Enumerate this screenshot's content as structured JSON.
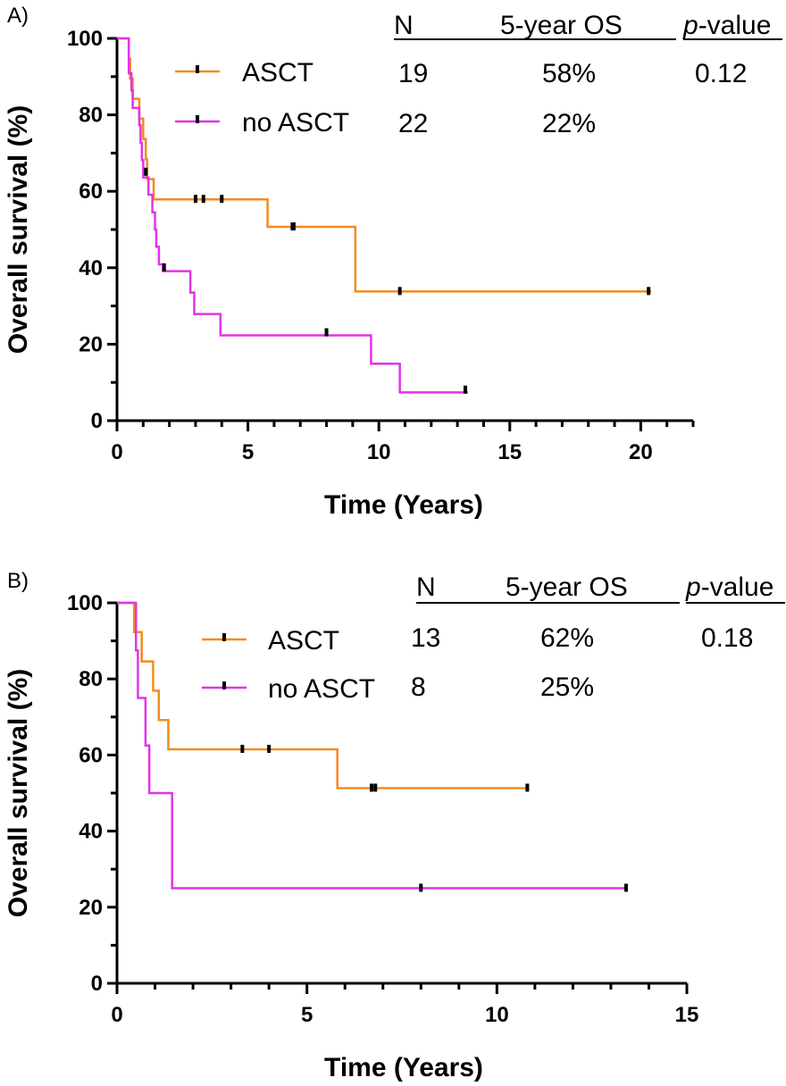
{
  "chart_data": [
    {
      "type": "line",
      "subtype": "kaplan-meier",
      "panel_label": "A)",
      "xlabel": "Time (Years)",
      "ylabel": "Overall survival (%)",
      "xlim": [
        0,
        22
      ],
      "ylim": [
        0,
        100
      ],
      "xticks": [
        0,
        5,
        10,
        15,
        20
      ],
      "yticks": [
        0,
        20,
        40,
        60,
        80,
        100
      ],
      "table": {
        "headers": {
          "n": "N",
          "os": "5-year OS",
          "p_italic": "p",
          "p_rest": "-value"
        },
        "rows": [
          {
            "n": "19",
            "os": "58%",
            "p": "0.12"
          },
          {
            "n": "22",
            "os": "22%",
            "p": ""
          }
        ]
      },
      "series": [
        {
          "name": "ASCT",
          "color": "#F28C1E",
          "steps": [
            [
              0,
              100
            ],
            [
              0.45,
              94.7
            ],
            [
              0.5,
              89.5
            ],
            [
              0.6,
              84.2
            ],
            [
              0.85,
              79
            ],
            [
              1.0,
              73.7
            ],
            [
              1.1,
              68.4
            ],
            [
              1.15,
              63.2
            ],
            [
              1.4,
              57.9
            ],
            [
              5.75,
              50.7
            ],
            [
              9.1,
              33.8
            ]
          ],
          "end": 20.4,
          "censors": [
            [
              3.0,
              57.9
            ],
            [
              3.3,
              57.9
            ],
            [
              4.0,
              57.9
            ],
            [
              6.7,
              50.7
            ],
            [
              6.75,
              50.7
            ],
            [
              10.8,
              33.8
            ],
            [
              20.3,
              33.8
            ]
          ]
        },
        {
          "name": "no ASCT",
          "color": "#E233E8",
          "steps": [
            [
              0,
              100
            ],
            [
              0.45,
              90.9
            ],
            [
              0.55,
              86.4
            ],
            [
              0.6,
              81.8
            ],
            [
              0.85,
              77.3
            ],
            [
              0.9,
              72.7
            ],
            [
              0.95,
              68.2
            ],
            [
              1.0,
              63.6
            ],
            [
              1.2,
              59.1
            ],
            [
              1.35,
              54.5
            ],
            [
              1.45,
              50.0
            ],
            [
              1.5,
              45.5
            ],
            [
              1.6,
              40.9
            ],
            [
              1.75,
              39.1
            ],
            [
              2.8,
              33.5
            ],
            [
              2.95,
              27.9
            ],
            [
              3.95,
              22.3
            ],
            [
              9.7,
              14.9
            ],
            [
              10.8,
              7.4
            ]
          ],
          "end": 13.4,
          "censors": [
            [
              1.1,
              65.0
            ],
            [
              1.8,
              40.0
            ],
            [
              8.0,
              23.0
            ],
            [
              13.3,
              8.0
            ]
          ]
        }
      ]
    },
    {
      "type": "line",
      "subtype": "kaplan-meier",
      "panel_label": "B)",
      "xlabel": "Time (Years)",
      "ylabel": "Overall survival (%)",
      "xlim": [
        0,
        15
      ],
      "ylim": [
        0,
        100
      ],
      "xticks": [
        0,
        5,
        10,
        15
      ],
      "yticks": [
        0,
        20,
        40,
        60,
        80,
        100
      ],
      "table": {
        "headers": {
          "n": "N",
          "os": "5-year OS",
          "p_italic": "p",
          "p_rest": "-value"
        },
        "rows": [
          {
            "n": "13",
            "os": "62%",
            "p": "0.18"
          },
          {
            "n": "8",
            "os": "25%",
            "p": ""
          }
        ]
      },
      "series": [
        {
          "name": "ASCT",
          "color": "#F28C1E",
          "steps": [
            [
              0,
              100
            ],
            [
              0.45,
              92.3
            ],
            [
              0.65,
              84.6
            ],
            [
              0.95,
              76.9
            ],
            [
              1.1,
              69.2
            ],
            [
              1.35,
              61.5
            ],
            [
              5.8,
              51.3
            ]
          ],
          "end": 10.8,
          "censors": [
            [
              3.3,
              61.5
            ],
            [
              4.0,
              61.5
            ],
            [
              6.7,
              51.3
            ],
            [
              6.8,
              51.3
            ],
            [
              10.8,
              51.3
            ]
          ]
        },
        {
          "name": "no ASCT",
          "color": "#E233E8",
          "steps": [
            [
              0,
              100
            ],
            [
              0.5,
              87.5
            ],
            [
              0.55,
              75.0
            ],
            [
              0.75,
              62.5
            ],
            [
              0.85,
              50.0
            ],
            [
              1.45,
              25.0
            ]
          ],
          "end": 13.4,
          "censors": [
            [
              8.0,
              25.0
            ],
            [
              13.4,
              25.0
            ]
          ]
        }
      ]
    }
  ]
}
